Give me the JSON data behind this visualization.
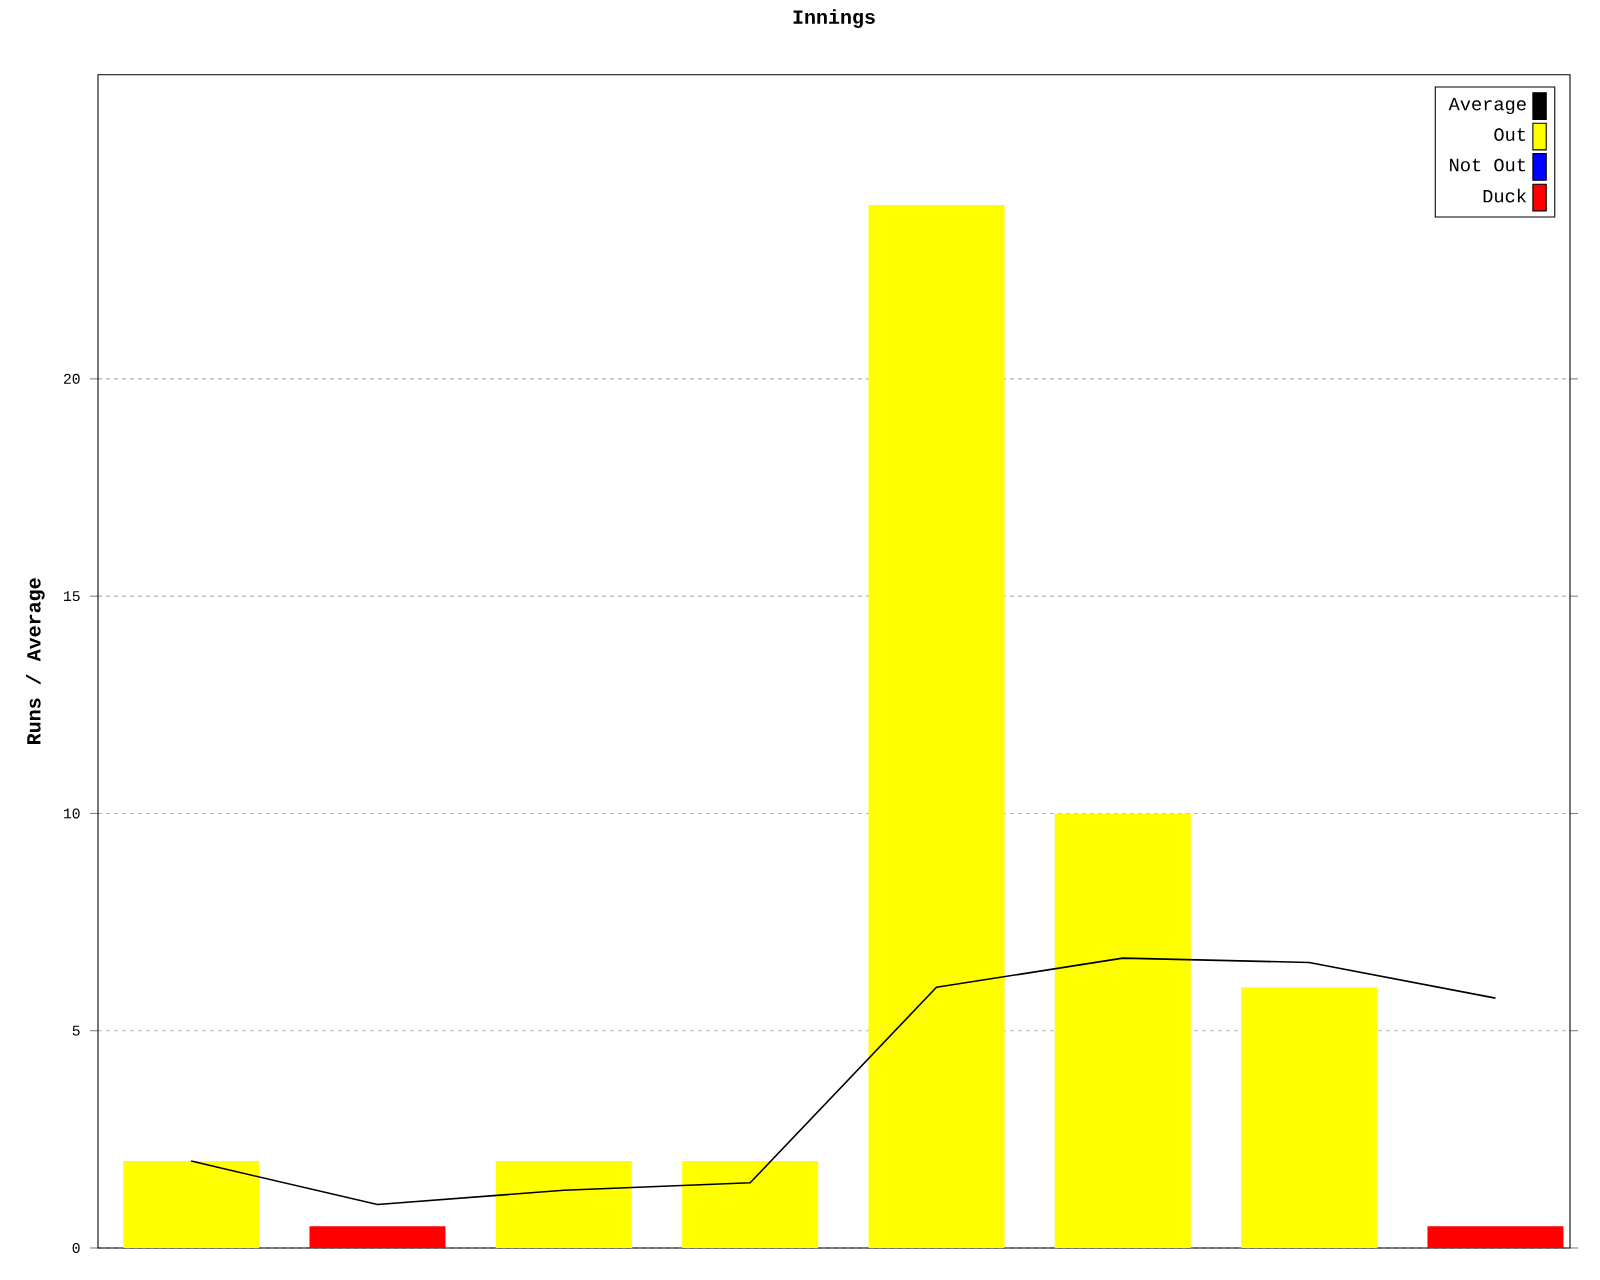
{
  "chart_data": {
    "type": "bar",
    "title": "Innings",
    "ylabel": "Runs / Average",
    "categories": [
      null,
      null,
      null,
      null,
      null,
      null,
      null,
      null
    ],
    "series": [
      {
        "name": "Average",
        "type": "line",
        "color": "#000000",
        "values": [
          2,
          1,
          1.33,
          1.5,
          6,
          6.67,
          6.57,
          5.75
        ]
      },
      {
        "name": "Out",
        "color": "#ffff00",
        "values": [
          2,
          null,
          2,
          2,
          24,
          10,
          6,
          null
        ]
      },
      {
        "name": "Not Out",
        "color": "#0000ff",
        "values": [
          null,
          null,
          null,
          null,
          null,
          null,
          null,
          null
        ]
      },
      {
        "name": "Duck",
        "color": "#ff0000",
        "values": [
          null,
          0.5,
          null,
          null,
          null,
          null,
          null,
          0.5
        ]
      }
    ],
    "ylim": [
      0,
      27
    ],
    "yticks": [
      0,
      5,
      10,
      15,
      20
    ],
    "grid": "y",
    "legend": "top right",
    "marker": "none",
    "line_style": "solid"
  }
}
